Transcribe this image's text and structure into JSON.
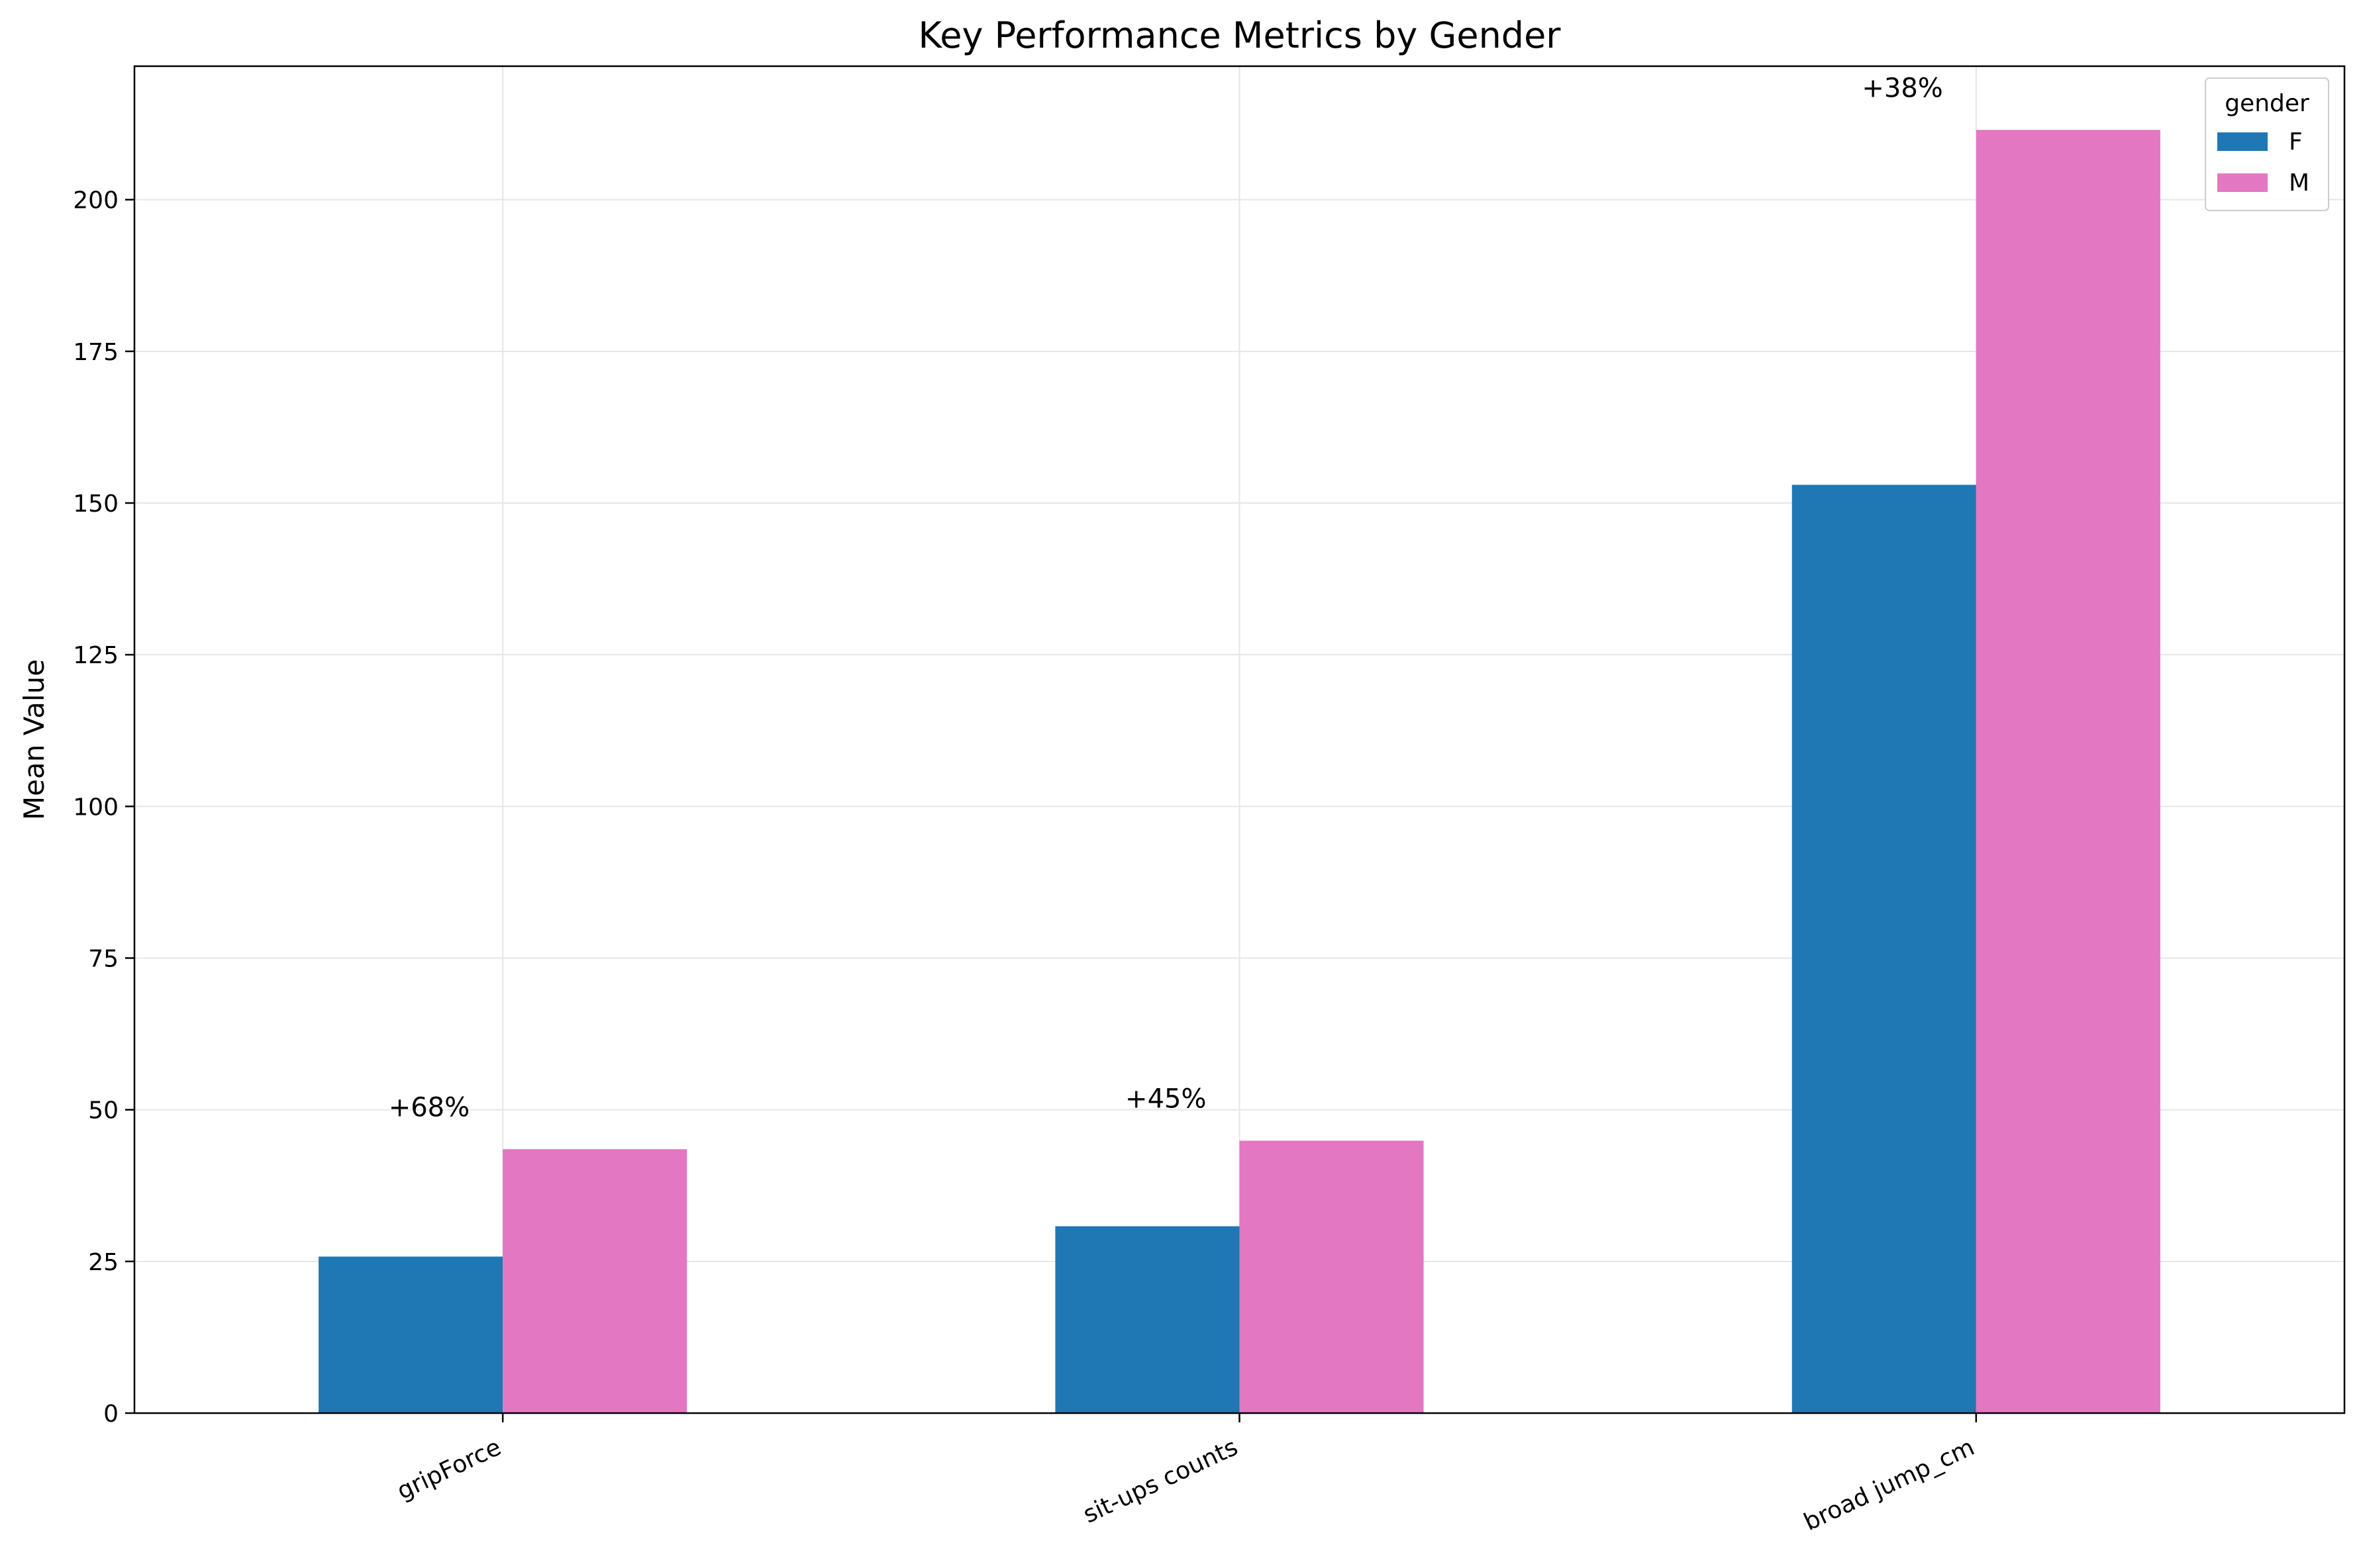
{
  "chart_data": {
    "type": "bar",
    "title": "Key Performance Metrics by Gender",
    "xlabel": "",
    "ylabel": "Mean Value",
    "categories": [
      "gripForce",
      "sit-ups counts",
      "broad jump_cm"
    ],
    "series": [
      {
        "name": "F",
        "color": "#1f77b4",
        "values": [
          25.8,
          30.8,
          153.0
        ]
      },
      {
        "name": "M",
        "color": "#e377c2",
        "values": [
          43.5,
          44.9,
          211.5
        ]
      }
    ],
    "annotations": [
      "+68%",
      "+45%",
      "+38%"
    ],
    "ylim": [
      0,
      222
    ],
    "yticks": [
      0,
      25,
      50,
      75,
      100,
      125,
      150,
      175,
      200
    ],
    "grid": true,
    "legend": {
      "title": "gender",
      "placement": "top-right"
    }
  }
}
